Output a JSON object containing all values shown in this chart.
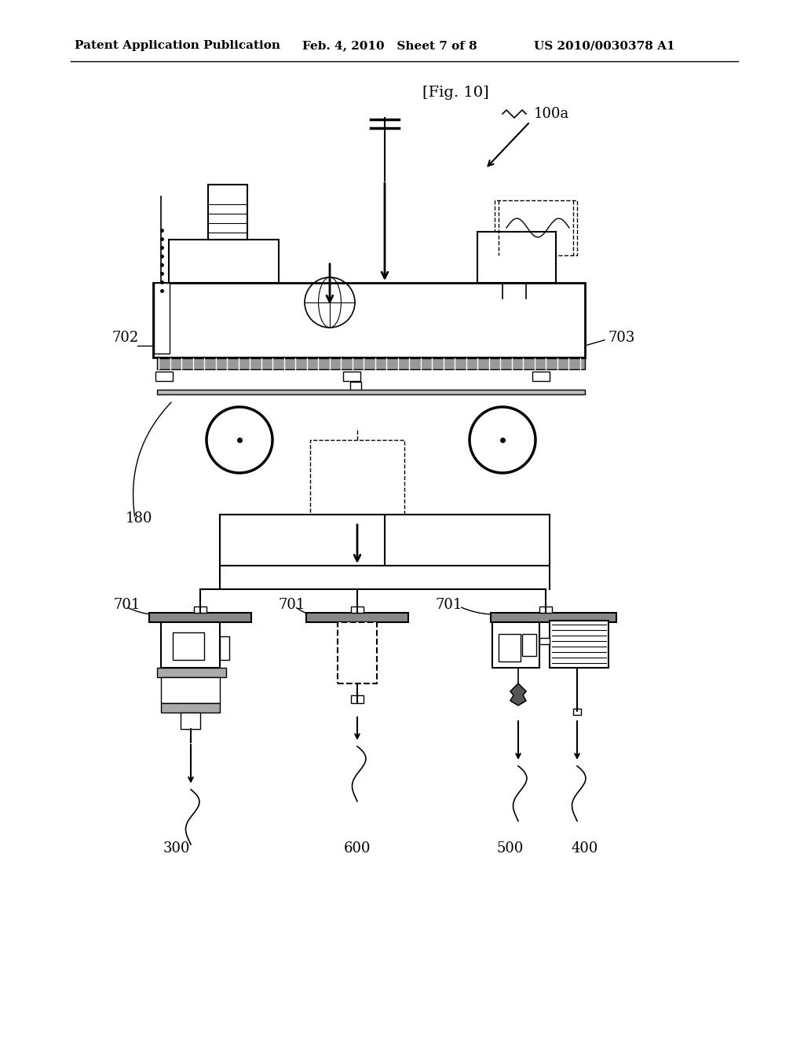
{
  "bg_color": "#ffffff",
  "header_left": "Patent Application Publication",
  "header_mid": "Feb. 4, 2010   Sheet 7 of 8",
  "header_right": "US 2010/0030378 A1",
  "fig_label": "[Fig. 10]",
  "label_100a": "100a",
  "label_702": "702",
  "label_703": "703",
  "label_180": "180",
  "label_701a": "701",
  "label_701b": "701",
  "label_701c": "701",
  "label_300": "300",
  "label_600": "600",
  "label_500": "500",
  "label_400": "400"
}
